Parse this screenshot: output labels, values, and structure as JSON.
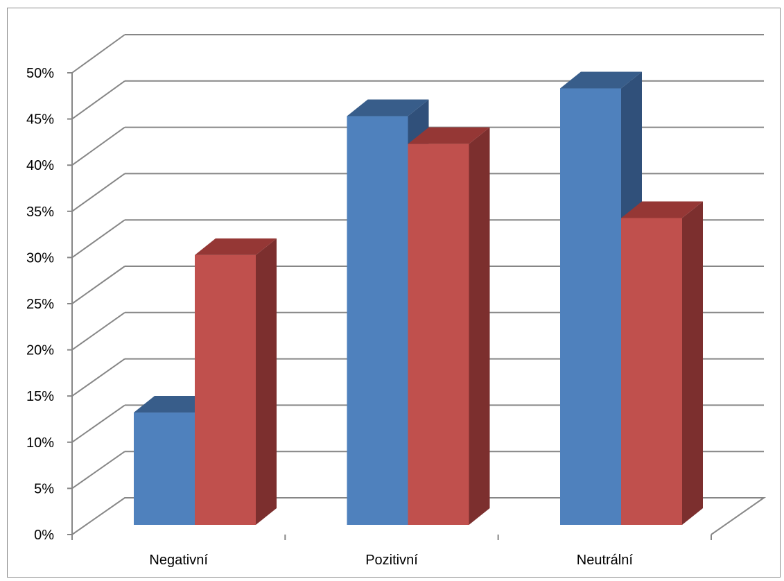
{
  "chart_data": {
    "type": "bar",
    "categories": [
      "Negativní",
      "Pozitivní",
      "Neutrální"
    ],
    "series": [
      {
        "values": [
          0.11,
          0.43,
          0.46
        ]
      },
      {
        "values": [
          0.28,
          0.4,
          0.32
        ]
      }
    ],
    "ylim": [
      0,
      0.5
    ],
    "yticks": [
      "0%",
      "5%",
      "10%",
      "15%",
      "20%",
      "25%",
      "30%",
      "35%",
      "40%",
      "45%",
      "50%"
    ],
    "grid": true,
    "legend": "none",
    "style": "3d-clustered-column",
    "colors": {
      "series1_front": "#4f81bd",
      "series1_top": "#385d8a",
      "series1_side": "#30507a",
      "series2_front": "#c0504d",
      "series2_top": "#953735",
      "series2_side": "#7c2f2e",
      "grid": "#868686"
    }
  }
}
